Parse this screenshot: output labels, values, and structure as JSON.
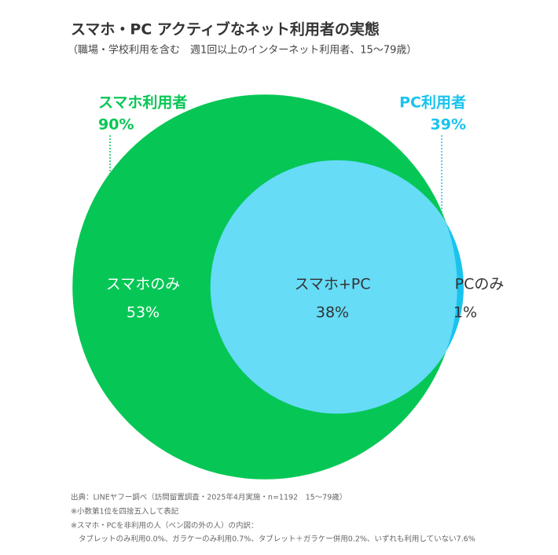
{
  "chart_data": {
    "type": "venn",
    "title": "スマホ・PC アクティブなネット利用者の実態",
    "subtitle": "（職場・学校利用を含む　週1回以上のインターネット利用者、15〜79歳）",
    "sets": {
      "names": [
        "スマホ利用者",
        "PC利用者"
      ],
      "values": [
        90,
        39
      ],
      "value_labels": [
        "90%",
        "39%"
      ],
      "colors": [
        "#06c755",
        "#19c3ee"
      ]
    },
    "regions": {
      "names": [
        "スマホのみ",
        "スマホ+PC",
        "PCのみ"
      ],
      "values": [
        53,
        38,
        1
      ],
      "value_labels": [
        "53%",
        "38%",
        "1%"
      ],
      "colors": [
        "#06c755",
        "#66dcf7",
        "#19c3ee"
      ]
    },
    "notes": [
      "出典：LINEヤフー調べ（訪問留置調査・2025年4月実施・n=1192　15〜79歳）",
      "※小数第1位を四捨五入して表記",
      "※スマホ・PCを非利用の人（ベン図の外の人）の内訳：",
      "タブレットのみ利用0.0%、ガラケーのみ利用0.7%、タブレット＋ガラケー併用0.2%、いずれも利用していない7.6%"
    ]
  }
}
